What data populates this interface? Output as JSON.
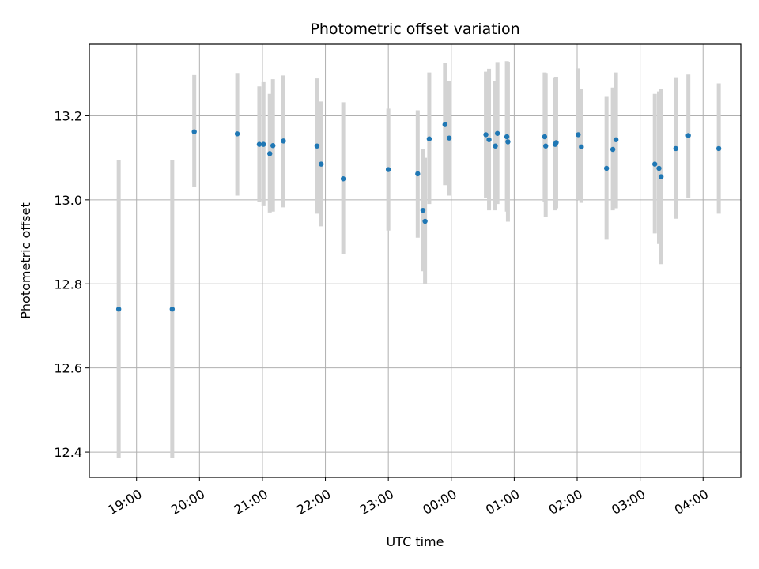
{
  "chart_data": {
    "type": "scatter",
    "title": "Photometric offset variation",
    "xlabel": "UTC time",
    "ylabel": "Photometric offset",
    "xlim": [
      "2000-01-01T18:15:00",
      "2000-01-02T04:36:00"
    ],
    "ylim": [
      12.34,
      13.37
    ],
    "grid": true,
    "x_ticks": [
      {
        "t": "2000-01-01T19:00:00",
        "label": "19:00"
      },
      {
        "t": "2000-01-01T20:00:00",
        "label": "20:00"
      },
      {
        "t": "2000-01-01T21:00:00",
        "label": "21:00"
      },
      {
        "t": "2000-01-01T22:00:00",
        "label": "22:00"
      },
      {
        "t": "2000-01-01T23:00:00",
        "label": "23:00"
      },
      {
        "t": "2000-01-02T00:00:00",
        "label": "00:00"
      },
      {
        "t": "2000-01-02T01:00:00",
        "label": "01:00"
      },
      {
        "t": "2000-01-02T02:00:00",
        "label": "02:00"
      },
      {
        "t": "2000-01-02T03:00:00",
        "label": "03:00"
      },
      {
        "t": "2000-01-02T04:00:00",
        "label": "04:00"
      }
    ],
    "y_ticks": [
      12.4,
      12.6,
      12.8,
      13.0,
      13.2
    ],
    "y_tick_labels": [
      "12.4",
      "12.6",
      "12.8",
      "13.0",
      "13.2"
    ],
    "point_color": "#1f77b4",
    "errorbar_color": "#d3d3d3",
    "points": [
      {
        "t": "2000-01-01T18:43:00",
        "y": 12.74,
        "lo": 12.385,
        "hi": 13.095
      },
      {
        "t": "2000-01-01T19:34:00",
        "y": 12.74,
        "lo": 12.385,
        "hi": 13.095
      },
      {
        "t": "2000-01-01T19:55:00",
        "y": 13.162,
        "lo": 13.03,
        "hi": 13.297
      },
      {
        "t": "2000-01-01T20:36:00",
        "y": 13.157,
        "lo": 13.01,
        "hi": 13.3
      },
      {
        "t": "2000-01-01T20:57:00",
        "y": 13.132,
        "lo": 12.995,
        "hi": 13.27
      },
      {
        "t": "2000-01-01T21:01:00",
        "y": 13.132,
        "lo": 12.985,
        "hi": 13.28
      },
      {
        "t": "2000-01-01T21:07:00",
        "y": 13.11,
        "lo": 12.97,
        "hi": 13.252
      },
      {
        "t": "2000-01-01T21:10:00",
        "y": 13.129,
        "lo": 12.972,
        "hi": 13.287
      },
      {
        "t": "2000-01-01T21:20:00",
        "y": 13.14,
        "lo": 12.982,
        "hi": 13.296
      },
      {
        "t": "2000-01-01T21:52:00",
        "y": 13.128,
        "lo": 12.967,
        "hi": 13.289
      },
      {
        "t": "2000-01-01T21:56:00",
        "y": 13.085,
        "lo": 12.937,
        "hi": 13.234
      },
      {
        "t": "2000-01-01T22:17:00",
        "y": 13.05,
        "lo": 12.87,
        "hi": 13.232
      },
      {
        "t": "2000-01-01T23:00:00",
        "y": 13.072,
        "lo": 12.927,
        "hi": 13.217
      },
      {
        "t": "2000-01-01T23:28:00",
        "y": 13.062,
        "lo": 12.91,
        "hi": 13.213
      },
      {
        "t": "2000-01-01T23:33:00",
        "y": 12.975,
        "lo": 12.83,
        "hi": 13.12
      },
      {
        "t": "2000-01-01T23:35:00",
        "y": 12.949,
        "lo": 12.8,
        "hi": 13.1
      },
      {
        "t": "2000-01-01T23:39:00",
        "y": 13.145,
        "lo": 12.99,
        "hi": 13.303
      },
      {
        "t": "2000-01-01T23:54:00",
        "y": 13.179,
        "lo": 13.035,
        "hi": 13.325
      },
      {
        "t": "2000-01-01T23:58:00",
        "y": 13.147,
        "lo": 13.01,
        "hi": 13.283
      },
      {
        "t": "2000-01-02T00:33:00",
        "y": 13.155,
        "lo": 13.005,
        "hi": 13.305
      },
      {
        "t": "2000-01-02T00:36:00",
        "y": 13.143,
        "lo": 12.975,
        "hi": 13.312
      },
      {
        "t": "2000-01-02T00:42:00",
        "y": 13.128,
        "lo": 12.975,
        "hi": 13.283
      },
      {
        "t": "2000-01-02T00:44:00",
        "y": 13.158,
        "lo": 12.99,
        "hi": 13.326
      },
      {
        "t": "2000-01-02T00:53:00",
        "y": 13.15,
        "lo": 12.972,
        "hi": 13.33
      },
      {
        "t": "2000-01-02T00:54:00",
        "y": 13.138,
        "lo": 12.948,
        "hi": 13.328
      },
      {
        "t": "2000-01-02T01:29:00",
        "y": 13.15,
        "lo": 12.995,
        "hi": 13.303
      },
      {
        "t": "2000-01-02T01:30:00",
        "y": 13.128,
        "lo": 12.96,
        "hi": 13.3
      },
      {
        "t": "2000-01-02T01:39:00",
        "y": 13.132,
        "lo": 12.975,
        "hi": 13.29
      },
      {
        "t": "2000-01-02T01:40:00",
        "y": 13.136,
        "lo": 12.98,
        "hi": 13.292
      },
      {
        "t": "2000-01-02T02:01:00",
        "y": 13.155,
        "lo": 13.0,
        "hi": 13.313
      },
      {
        "t": "2000-01-02T02:04:00",
        "y": 13.126,
        "lo": 12.993,
        "hi": 13.263
      },
      {
        "t": "2000-01-02T02:28:00",
        "y": 13.075,
        "lo": 12.905,
        "hi": 13.245
      },
      {
        "t": "2000-01-02T02:34:00",
        "y": 13.12,
        "lo": 12.975,
        "hi": 13.267
      },
      {
        "t": "2000-01-02T02:37:00",
        "y": 13.143,
        "lo": 12.98,
        "hi": 13.303
      },
      {
        "t": "2000-01-02T03:14:00",
        "y": 13.085,
        "lo": 12.92,
        "hi": 13.252
      },
      {
        "t": "2000-01-02T03:18:00",
        "y": 13.075,
        "lo": 12.895,
        "hi": 13.258
      },
      {
        "t": "2000-01-02T03:20:00",
        "y": 13.055,
        "lo": 12.847,
        "hi": 13.264
      },
      {
        "t": "2000-01-02T03:34:00",
        "y": 13.122,
        "lo": 12.955,
        "hi": 13.29
      },
      {
        "t": "2000-01-02T03:46:00",
        "y": 13.153,
        "lo": 13.005,
        "hi": 13.298
      },
      {
        "t": "2000-01-02T04:15:00",
        "y": 13.122,
        "lo": 12.967,
        "hi": 13.277
      }
    ]
  }
}
